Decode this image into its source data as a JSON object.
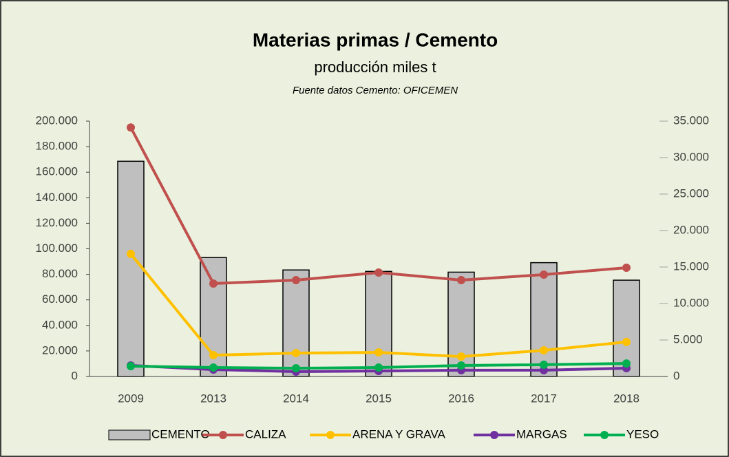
{
  "chart_data": {
    "type": "bar_line",
    "title": "Materias primas / Cemento",
    "subtitle": "producción miles t",
    "source": "Fuente datos Cemento: OFICEMEN",
    "categories": [
      "2009",
      "2013",
      "2014",
      "2015",
      "2016",
      "2017",
      "2018"
    ],
    "series": [
      {
        "name": "CEMENTO",
        "type": "bar",
        "axis": "y2",
        "color": "#bfbfbf",
        "values": [
          29500,
          16300,
          14600,
          14400,
          14300,
          15600,
          13200
        ]
      },
      {
        "name": "CALIZA",
        "type": "line",
        "color": "#c0504d",
        "values": [
          195000,
          72800,
          75500,
          81400,
          75500,
          79800,
          85200
        ]
      },
      {
        "name": "ARENA Y GRAVA",
        "type": "line",
        "color": "#ffc000",
        "values": [
          96000,
          16700,
          18300,
          18900,
          15600,
          20500,
          27000
        ]
      },
      {
        "name": "MARGAS",
        "type": "line",
        "color": "#7030a0",
        "values": [
          8600,
          5400,
          3800,
          4300,
          4900,
          4900,
          6500
        ]
      },
      {
        "name": "YESO",
        "type": "line",
        "color": "#00b050",
        "values": [
          8100,
          7000,
          6500,
          7000,
          8600,
          9200,
          10200
        ]
      }
    ],
    "ylim": [
      0,
      200000
    ],
    "yticks": [
      0,
      {
        "value": 20000,
        "label": "20.000"
      },
      {
        "value": 40000,
        "label": "40.000"
      },
      {
        "value": 60000,
        "label": "60.000"
      },
      {
        "value": 80000,
        "label": "80.000"
      },
      {
        "value": 100000,
        "label": "100.000"
      },
      {
        "value": 120000,
        "label": "120.000"
      },
      {
        "value": 140000,
        "label": "140.000"
      },
      {
        "value": 160000,
        "label": "160.000"
      },
      {
        "value": 180000,
        "label": "180.000"
      },
      {
        "value": 200000,
        "label": "200.000"
      }
    ],
    "y2lim": [
      0,
      35000
    ],
    "y2ticks": [
      0,
      {
        "value": 5000,
        "label": "5.000"
      },
      {
        "value": 10000,
        "label": "10.000"
      },
      {
        "value": 15000,
        "label": "15.000"
      },
      {
        "value": 20000,
        "label": "20.000"
      },
      {
        "value": 25000,
        "label": "25.000"
      },
      {
        "value": 30000,
        "label": "30.000"
      },
      {
        "value": 35000,
        "label": "35.000"
      }
    ],
    "legend": "bottom",
    "grid": false
  }
}
